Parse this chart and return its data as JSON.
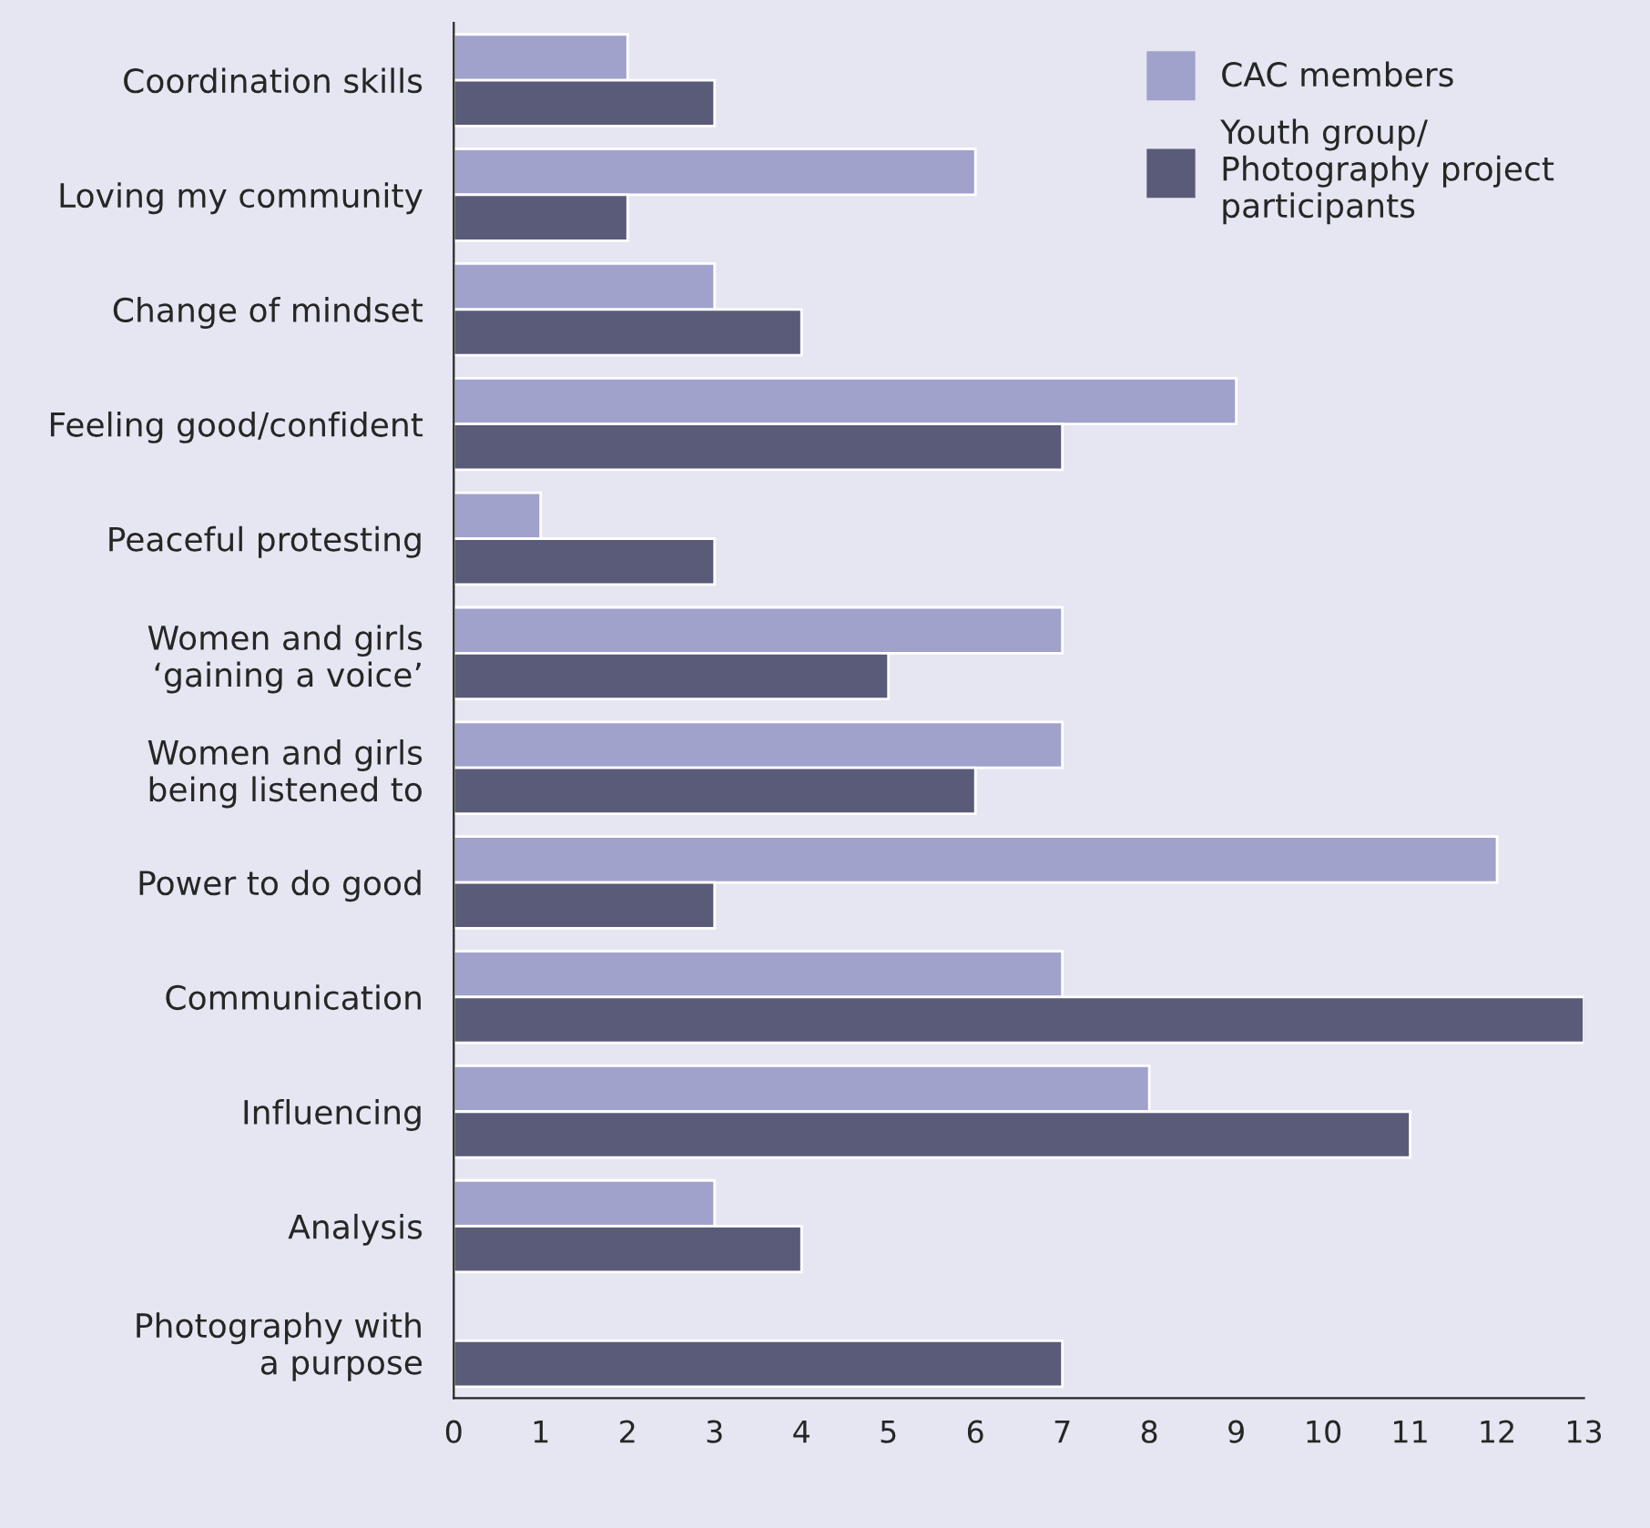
{
  "chart_data": {
    "type": "bar",
    "orientation": "horizontal",
    "categories": [
      "Coordination skills",
      "Loving my community",
      "Change of mindset",
      "Feeling good/confident",
      "Peaceful protesting",
      "Women and girls\n‘gaining a voice’",
      "Women and girls\nbeing listened to",
      "Power to do good",
      "Communication",
      "Influencing",
      "Analysis",
      "Photography with\na purpose"
    ],
    "series": [
      {
        "name": "CAC members",
        "color": "#a0a2cc",
        "values": [
          2,
          6,
          3,
          9,
          1,
          7,
          7,
          12,
          7,
          8,
          3,
          null
        ]
      },
      {
        "name": "Youth group/\nPhotography project\nparticipants",
        "color": "#5a5b78",
        "values": [
          3,
          2,
          4,
          7,
          3,
          5,
          6,
          3,
          13,
          11,
          4,
          7
        ]
      }
    ],
    "xlim": [
      0,
      13
    ],
    "xticks": [
      0,
      1,
      2,
      3,
      4,
      5,
      6,
      7,
      8,
      9,
      10,
      11,
      12,
      13
    ],
    "grid": false,
    "legend": "top right"
  }
}
